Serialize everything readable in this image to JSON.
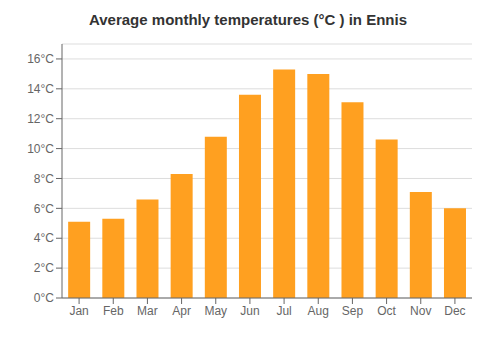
{
  "chart_data": {
    "type": "bar",
    "title": "Average monthly temperatures (°C ) in Ennis",
    "categories": [
      "Jan",
      "Feb",
      "Mar",
      "Apr",
      "May",
      "Jun",
      "Jul",
      "Aug",
      "Sep",
      "Oct",
      "Nov",
      "Dec"
    ],
    "values": [
      5.1,
      5.3,
      6.6,
      8.3,
      10.8,
      13.6,
      15.3,
      15.0,
      13.1,
      10.6,
      7.1,
      6.0
    ],
    "color": "#FFA020",
    "ylim": [
      0,
      17
    ],
    "yticks": [
      {
        "value": 0,
        "label": "0°C"
      },
      {
        "value": 2,
        "label": "2°C"
      },
      {
        "value": 4,
        "label": "4°C"
      },
      {
        "value": 6,
        "label": "6°C"
      },
      {
        "value": 8,
        "label": "8°C"
      },
      {
        "value": 10,
        "label": "10°C"
      },
      {
        "value": 12,
        "label": "12°C"
      },
      {
        "value": 14,
        "label": "14°C"
      },
      {
        "value": 16,
        "label": "16°C"
      }
    ],
    "grid": true
  }
}
